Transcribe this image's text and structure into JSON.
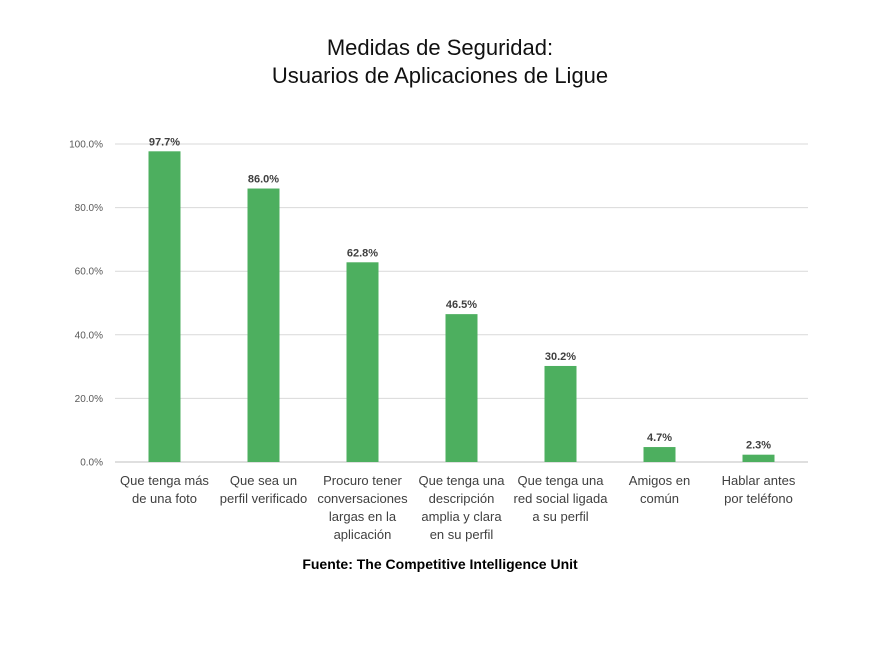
{
  "title_line1": "Medidas de Seguridad:",
  "title_line2": "Usuarios de Aplicaciones de Ligue",
  "source": "Fuente: The Competitive Intelligence Unit",
  "colors": {
    "bar": "#4daf5f",
    "grid": "#d9d9d9",
    "axis": "#bfbfbf"
  },
  "chart_data": {
    "type": "bar",
    "title": "Medidas de Seguridad: Usuarios de Aplicaciones de Ligue",
    "xlabel": "",
    "ylabel": "",
    "ylim": [
      0,
      100
    ],
    "grid": true,
    "categories": [
      [
        "Que tenga más",
        "de una foto"
      ],
      [
        "Que sea un",
        "perfil verificado"
      ],
      [
        "Procuro tener",
        "conversaciones",
        "largas en la",
        "aplicación"
      ],
      [
        "Que tenga una",
        "descripción",
        "amplia y clara",
        "en su perfil"
      ],
      [
        "Que tenga una",
        "red social ligada",
        "a su perfil"
      ],
      [
        "Amigos en",
        "común"
      ],
      [
        "Hablar antes",
        "por teléfono"
      ]
    ],
    "values": [
      97.7,
      86.0,
      62.8,
      46.5,
      30.2,
      4.7,
      2.3
    ],
    "value_labels": [
      "97.7%",
      "86.0%",
      "62.8%",
      "46.5%",
      "30.2%",
      "4.7%",
      "2.3%"
    ],
    "y_ticks": [
      0,
      20,
      40,
      60,
      80,
      100
    ],
    "y_tick_labels": [
      "0.0%",
      "20.0%",
      "40.0%",
      "60.0%",
      "80.0%",
      "100.0%"
    ]
  }
}
